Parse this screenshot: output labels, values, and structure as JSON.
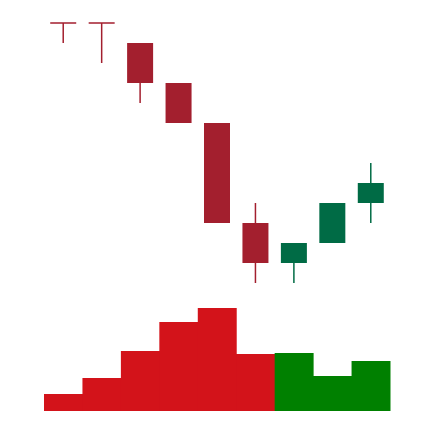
{
  "chart_data": {
    "type": "candlestick",
    "open": [
      70,
      70,
      65,
      55,
      45,
      20,
      10,
      15,
      25
    ],
    "high": [
      70,
      70,
      65,
      55,
      45,
      25,
      15,
      25,
      35
    ],
    "low": [
      65,
      60,
      50,
      45,
      20,
      5,
      5,
      15,
      20
    ],
    "close": [
      70,
      70,
      55,
      45,
      20,
      10,
      15,
      25,
      30
    ],
    "volume": [
      17,
      33,
      60,
      89,
      103,
      57,
      58,
      35,
      50
    ],
    "ylim": [
      0,
      75
    ],
    "volume_ylim": [
      0,
      103
    ],
    "up_color": "#006b45",
    "down_color": "#a31f2e",
    "volume_up_color": "#008000",
    "volume_down_color": "#d3131a"
  }
}
